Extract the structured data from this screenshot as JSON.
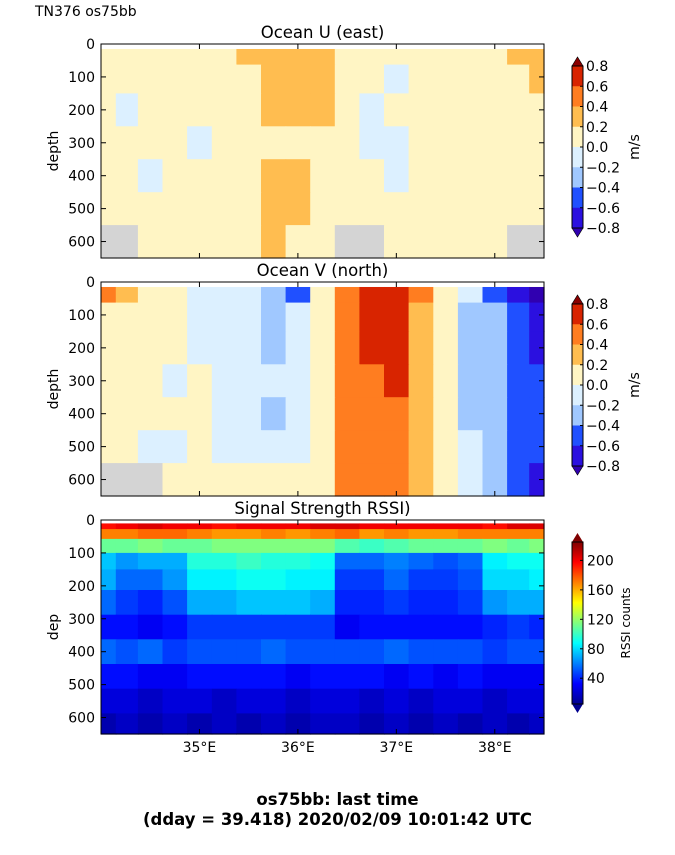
{
  "header": {
    "label": "TN376 os75bb"
  },
  "caption": {
    "line1": "os75bb: last time",
    "line2": "(dday = 39.418) 2020/02/09 10:01:42 UTC"
  },
  "chart_data": [
    {
      "type": "heatmap",
      "title": "Ocean U (east)",
      "ylabel": "depth",
      "ylim": [
        650,
        0
      ],
      "yticks": [
        "0",
        "100",
        "200",
        "300",
        "400",
        "500",
        "600"
      ],
      "xlim": [
        34.0,
        38.5
      ],
      "colorbar": {
        "label": "m/s",
        "ticks": [
          "0.8",
          "0.6",
          "0.4",
          "0.2",
          "0.0",
          "−0.2",
          "−0.4",
          "−0.6",
          "−0.8"
        ]
      },
      "x": [
        34.05,
        34.25,
        34.5,
        34.75,
        35.0,
        35.25,
        35.5,
        35.75,
        36.0,
        36.25,
        36.5,
        36.75,
        37.0,
        37.25,
        37.5,
        37.75,
        38.0,
        38.25,
        38.45
      ],
      "depth": [
        25,
        100,
        200,
        300,
        400,
        500,
        600
      ],
      "values": [
        [
          0.1,
          0.05,
          0.0,
          0.05,
          0.1,
          0.15,
          0.3,
          0.35,
          0.3,
          0.25,
          0.1,
          0.05,
          0.0,
          0.05,
          0.05,
          0.1,
          0.1,
          0.3,
          0.3
        ],
        [
          0.05,
          0.05,
          0.0,
          0.05,
          0.05,
          0.05,
          0.05,
          0.3,
          0.3,
          0.25,
          0.05,
          0.0,
          -0.05,
          0.05,
          0.05,
          0.05,
          0.05,
          0.1,
          0.3
        ],
        [
          0.05,
          -0.05,
          0.05,
          0.05,
          0.05,
          0.05,
          0.05,
          0.25,
          0.3,
          0.2,
          0.05,
          -0.05,
          0.05,
          0.05,
          0.05,
          0.05,
          0.05,
          0.05,
          0.1
        ],
        [
          0.05,
          0.05,
          0.05,
          0.05,
          -0.05,
          0.05,
          0.05,
          0.05,
          0.05,
          0.05,
          0.05,
          -0.05,
          -0.05,
          0.05,
          0.05,
          0.05,
          0.05,
          0.05,
          0.05
        ],
        [
          0.05,
          0.05,
          -0.05,
          0.05,
          0.05,
          0.05,
          0.05,
          0.25,
          0.25,
          0.05,
          0.05,
          0.05,
          -0.05,
          0.05,
          0.05,
          0.05,
          0.05,
          0.05,
          0.05
        ],
        [
          0.05,
          0.05,
          0.05,
          0.05,
          0.05,
          0.05,
          0.05,
          0.25,
          0.25,
          0.05,
          0.05,
          0.05,
          0.05,
          0.05,
          0.05,
          0.05,
          0.05,
          0.05,
          0.05
        ],
        [
          null,
          null,
          0.05,
          0.05,
          0.05,
          0.05,
          0.05,
          0.25,
          0.05,
          0.05,
          null,
          null,
          0.05,
          0.05,
          0.05,
          0.05,
          0.05,
          null,
          null
        ]
      ]
    },
    {
      "type": "heatmap",
      "title": "Ocean V (north)",
      "ylabel": "depth",
      "ylim": [
        650,
        0
      ],
      "yticks": [
        "0",
        "100",
        "200",
        "300",
        "400",
        "500",
        "600"
      ],
      "xlim": [
        34.0,
        38.5
      ],
      "colorbar": {
        "label": "m/s",
        "ticks": [
          "0.8",
          "0.6",
          "0.4",
          "0.2",
          "0.0",
          "−0.2",
          "−0.4",
          "−0.6",
          "−0.8"
        ]
      },
      "x": [
        34.05,
        34.25,
        34.5,
        34.75,
        35.0,
        35.25,
        35.5,
        35.75,
        36.0,
        36.25,
        36.5,
        36.75,
        37.0,
        37.25,
        37.5,
        37.75,
        38.0,
        38.25,
        38.45
      ],
      "depth": [
        25,
        100,
        200,
        300,
        400,
        500,
        600
      ],
      "values": [
        [
          0.5,
          0.3,
          0.05,
          0.05,
          -0.05,
          -0.15,
          -0.2,
          -0.3,
          -0.45,
          0.1,
          0.4,
          0.65,
          0.7,
          0.4,
          0.05,
          -0.2,
          -0.5,
          -0.7,
          -0.85
        ],
        [
          0.05,
          0.05,
          0.05,
          0.05,
          -0.05,
          -0.05,
          -0.15,
          -0.3,
          -0.1,
          0.1,
          0.4,
          0.65,
          0.7,
          0.3,
          0.05,
          -0.25,
          -0.4,
          -0.55,
          -0.7
        ],
        [
          0.05,
          0.05,
          0.05,
          0.05,
          -0.05,
          -0.05,
          -0.1,
          -0.3,
          -0.1,
          0.1,
          0.4,
          0.6,
          0.65,
          0.3,
          0.05,
          -0.25,
          -0.35,
          -0.55,
          -0.65
        ],
        [
          0.05,
          0.05,
          0.05,
          -0.05,
          0.05,
          -0.05,
          -0.1,
          -0.15,
          -0.1,
          0.1,
          0.4,
          0.55,
          0.6,
          0.3,
          0.05,
          -0.25,
          -0.35,
          -0.5,
          -0.6
        ],
        [
          0.05,
          0.05,
          0.05,
          0.05,
          0.05,
          -0.05,
          -0.1,
          -0.3,
          -0.1,
          0.1,
          0.4,
          0.45,
          0.45,
          0.3,
          0.05,
          -0.25,
          -0.35,
          -0.45,
          -0.55
        ],
        [
          0.05,
          0.05,
          -0.05,
          -0.05,
          0.05,
          -0.05,
          -0.1,
          -0.1,
          -0.05,
          0.1,
          0.4,
          0.4,
          0.45,
          0.3,
          0.05,
          -0.1,
          -0.35,
          -0.45,
          -0.55
        ],
        [
          null,
          null,
          null,
          0.05,
          0.05,
          0.05,
          0.05,
          0.05,
          0.05,
          0.1,
          0.4,
          0.4,
          0.4,
          0.3,
          0.05,
          -0.1,
          -0.35,
          -0.6,
          -0.65
        ]
      ]
    },
    {
      "type": "heatmap",
      "title": "Signal Strength RSSI)",
      "ylabel": "dep",
      "ylim": [
        650,
        0
      ],
      "yticks": [
        "0",
        "100",
        "200",
        "300",
        "400",
        "500",
        "600"
      ],
      "xlim": [
        34.0,
        38.5
      ],
      "xticks": [
        35,
        36,
        37,
        38
      ],
      "xticklabels": [
        "35°E",
        "36°E",
        "37°E",
        "38°E"
      ],
      "colorbar": {
        "label": "RSSI counts",
        "ticks": [
          "200",
          "160",
          "120",
          "80",
          "40"
        ],
        "range": [
          5,
          225
        ]
      },
      "x": [
        34.05,
        34.25,
        34.5,
        34.75,
        35.0,
        35.25,
        35.5,
        35.75,
        36.0,
        36.25,
        36.5,
        36.75,
        37.0,
        37.25,
        37.5,
        37.75,
        38.0,
        38.25,
        38.45
      ],
      "depth": [
        15,
        40,
        75,
        125,
        175,
        250,
        325,
        400,
        475,
        550,
        625
      ],
      "values": [
        [
          195,
          200,
          205,
          200,
          200,
          195,
          200,
          200,
          200,
          205,
          205,
          200,
          200,
          200,
          200,
          200,
          195,
          205,
          205
        ],
        [
          170,
          170,
          175,
          175,
          170,
          165,
          165,
          170,
          165,
          170,
          175,
          165,
          170,
          165,
          165,
          170,
          170,
          170,
          170
        ],
        [
          110,
          110,
          115,
          110,
          110,
          115,
          115,
          115,
          115,
          115,
          105,
          100,
          105,
          110,
          110,
          110,
          115,
          110,
          115
        ],
        [
          75,
          65,
          70,
          70,
          95,
          95,
          100,
          95,
          95,
          90,
          55,
          55,
          60,
          55,
          50,
          55,
          85,
          90,
          90
        ],
        [
          70,
          55,
          55,
          65,
          85,
          85,
          90,
          90,
          85,
          85,
          45,
          45,
          55,
          45,
          45,
          50,
          80,
          80,
          85
        ],
        [
          55,
          45,
          40,
          50,
          70,
          70,
          75,
          75,
          75,
          70,
          40,
          40,
          45,
          40,
          40,
          45,
          65,
          70,
          70
        ],
        [
          35,
          35,
          30,
          35,
          45,
          45,
          45,
          45,
          45,
          45,
          30,
          35,
          35,
          35,
          35,
          35,
          40,
          45,
          40
        ],
        [
          55,
          50,
          55,
          45,
          50,
          50,
          50,
          55,
          50,
          50,
          50,
          50,
          55,
          50,
          50,
          50,
          45,
          50,
          50
        ],
        [
          35,
          35,
          30,
          30,
          35,
          35,
          35,
          35,
          30,
          35,
          35,
          35,
          30,
          35,
          30,
          35,
          30,
          30,
          30
        ],
        [
          25,
          25,
          20,
          25,
          25,
          20,
          25,
          25,
          20,
          25,
          25,
          20,
          25,
          20,
          25,
          25,
          20,
          25,
          25
        ],
        [
          15,
          20,
          15,
          20,
          15,
          20,
          15,
          20,
          15,
          20,
          20,
          15,
          20,
          15,
          20,
          15,
          20,
          15,
          20
        ]
      ]
    }
  ]
}
